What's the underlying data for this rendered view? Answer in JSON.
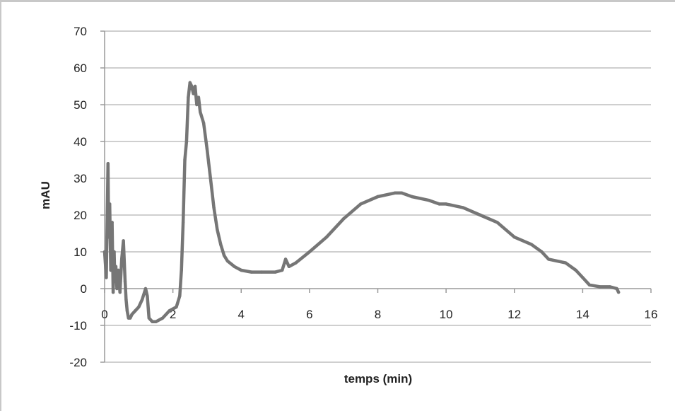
{
  "chart_data": {
    "type": "line",
    "title": "",
    "xlabel": "temps (min)",
    "ylabel": "mAU",
    "xlim": [
      0,
      16
    ],
    "ylim": [
      -20,
      70
    ],
    "x_ticks": [
      0,
      2,
      4,
      6,
      8,
      10,
      12,
      14,
      16
    ],
    "y_ticks": [
      -20,
      -10,
      0,
      10,
      20,
      30,
      40,
      50,
      60,
      70
    ],
    "grid": "horizontal",
    "legend": "none",
    "colors": {
      "line": "#767676",
      "grid": "#cfcfcf",
      "axis": "#9a9a9a"
    },
    "series": [
      {
        "x": [
          0,
          0.05,
          0.1,
          0.12,
          0.15,
          0.18,
          0.22,
          0.25,
          0.28,
          0.3,
          0.33,
          0.36,
          0.4,
          0.45,
          0.5,
          0.55,
          0.6,
          0.63,
          0.66,
          0.7,
          0.75,
          0.8,
          0.9,
          1.0,
          1.1,
          1.2,
          1.25,
          1.3,
          1.4,
          1.5,
          1.7,
          1.9,
          2.1,
          2.2,
          2.25,
          2.3,
          2.35,
          2.4,
          2.45,
          2.5,
          2.55,
          2.6,
          2.65,
          2.7,
          2.75,
          2.8,
          2.9,
          3.0,
          3.1,
          3.2,
          3.3,
          3.4,
          3.5,
          3.6,
          3.8,
          4.0,
          4.3,
          4.6,
          5.0,
          5.2,
          5.3,
          5.4,
          5.6,
          6.0,
          6.5,
          7.0,
          7.5,
          8.0,
          8.5,
          8.7,
          9.0,
          9.5,
          9.8,
          10.0,
          10.5,
          11.0,
          11.5,
          12.0,
          12.5,
          12.8,
          13.0,
          13.5,
          13.8,
          14.0,
          14.2,
          14.5,
          14.8,
          15.0,
          15.05
        ],
        "y": [
          10,
          3,
          34,
          14,
          23,
          5,
          18,
          -1,
          10,
          2,
          6,
          0,
          5,
          -1,
          8,
          13,
          2,
          -3,
          -6,
          -8,
          -8,
          -7,
          -6,
          -5,
          -3,
          0,
          -2,
          -8,
          -9,
          -9,
          -8,
          -6,
          -5,
          -2,
          5,
          18,
          35,
          40,
          52,
          56,
          55,
          53,
          55,
          50,
          52,
          48,
          45,
          38,
          30,
          22,
          16,
          12,
          9,
          7.5,
          6,
          5,
          4.5,
          4.5,
          4.5,
          5,
          8,
          6,
          7,
          10,
          14,
          19,
          23,
          25,
          26,
          26,
          25,
          24,
          23,
          23,
          22,
          20,
          18,
          14,
          12,
          10,
          8,
          7,
          5,
          3,
          1,
          0.5,
          0.5,
          0,
          -1
        ]
      }
    ]
  }
}
